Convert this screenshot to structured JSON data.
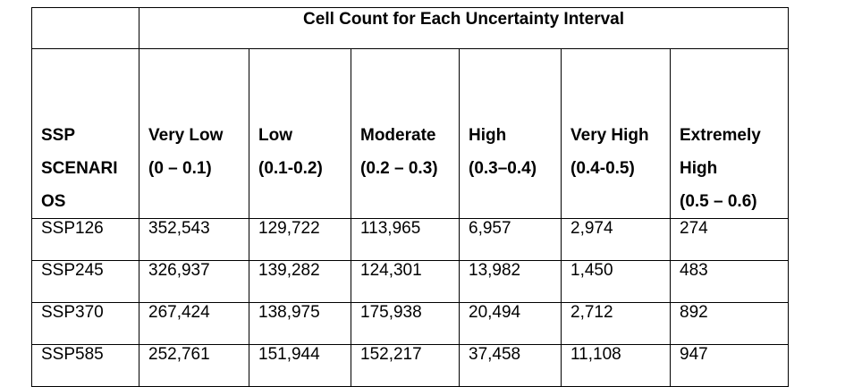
{
  "table": {
    "group_title": "Cell Count for Each Uncertainty Interval",
    "scenario_header": [
      "SSP",
      "SCENARI",
      "OS"
    ],
    "columns": [
      {
        "lines": [
          "Very Low",
          "(0 – 0.1)"
        ]
      },
      {
        "lines": [
          "Low",
          "(0.1-0.2)"
        ]
      },
      {
        "lines": [
          "Moderate",
          "(0.2 – 0.3)"
        ]
      },
      {
        "lines": [
          "High",
          "(0.3–0.4)"
        ]
      },
      {
        "lines": [
          "Very High",
          "(0.4-0.5)"
        ]
      },
      {
        "lines": [
          "Extremely",
          "High",
          "(0.5 – 0.6)"
        ]
      }
    ],
    "rows": [
      {
        "scenario": "SSP126",
        "values": [
          "352,543",
          "129,722",
          "113,965",
          "6,957",
          "2,974",
          "274"
        ]
      },
      {
        "scenario": "SSP245",
        "values": [
          "326,937",
          "139,282",
          "124,301",
          "13,982",
          "1,450",
          "483"
        ]
      },
      {
        "scenario": "SSP370",
        "values": [
          "267,424",
          "138,975",
          "175,938",
          "20,494",
          "2,712",
          "892"
        ]
      },
      {
        "scenario": "SSP585",
        "values": [
          "252,761",
          "151,944",
          "152,217",
          "37,458",
          "11,108",
          "947"
        ]
      }
    ]
  }
}
